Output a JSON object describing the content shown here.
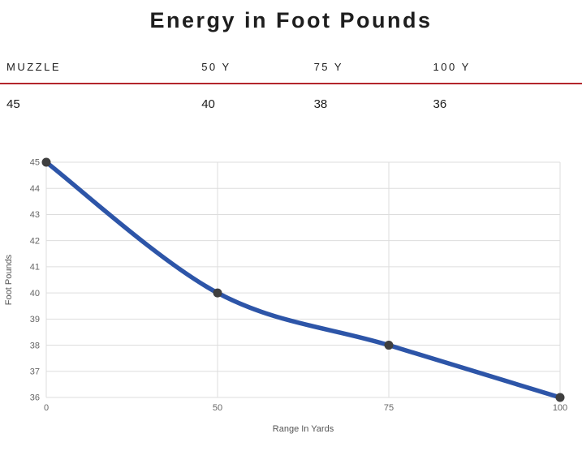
{
  "title": "Energy in Foot Pounds",
  "table": {
    "headers": [
      "MUZZLE",
      "50 Y",
      "75 Y",
      "100 Y"
    ],
    "values": [
      "45",
      "40",
      "38",
      "36"
    ],
    "rule_color": "#b3262c"
  },
  "chart_data": {
    "type": "line",
    "categories": [
      "0",
      "50",
      "75",
      "100"
    ],
    "values": [
      45,
      40,
      38,
      36
    ],
    "title": "Energy in Foot Pounds",
    "xlabel": "Range In Yards",
    "ylabel": "Foot Pounds",
    "ylim": [
      36,
      45
    ],
    "ytick_step": 1,
    "yticks": [
      36,
      37,
      38,
      39,
      40,
      41,
      42,
      43,
      44,
      45
    ],
    "grid": true,
    "legend": "none",
    "line_color": "#2d55a8",
    "point_color": "#3f3f3f",
    "grid_color": "#dddddd",
    "tick_label_color": "#666666",
    "axis_title_color": "#555555"
  }
}
